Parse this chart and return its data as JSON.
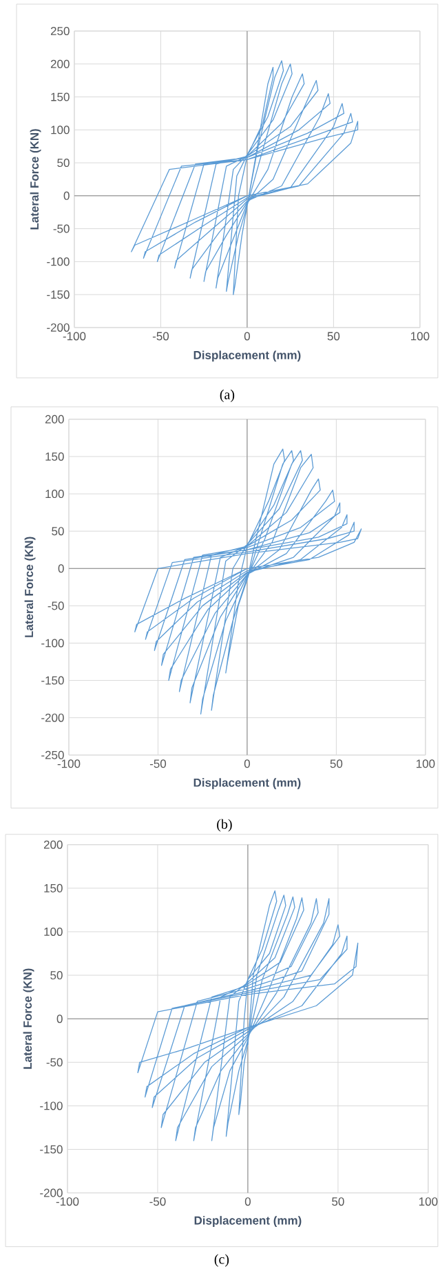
{
  "chart_data": [
    {
      "type": "line",
      "xlabel": "Displacement (mm)",
      "ylabel": "Lateral Force (KN)",
      "annotations": [
        "(a)"
      ],
      "color": "#5b9bd5",
      "grid": true,
      "marker": "none",
      "line_style": "solid",
      "xlim": [
        -100,
        100
      ],
      "xticks": [
        -100,
        -50,
        0,
        50,
        100
      ],
      "ylim": [
        -200,
        250
      ],
      "yticks": [
        -200,
        -150,
        -100,
        -50,
        0,
        50,
        100,
        150,
        200,
        250
      ],
      "x": [
        0,
        5,
        12,
        15,
        15,
        9,
        0,
        -5,
        -8,
        -7,
        -3,
        0,
        6,
        16,
        20,
        21,
        12,
        0,
        -6,
        -12,
        -11,
        -5,
        0,
        8,
        20,
        25,
        26,
        15,
        0,
        -8,
        -18,
        -17,
        -8,
        0,
        12,
        26,
        32,
        33,
        20,
        0,
        -12,
        -25,
        -24,
        -12,
        0,
        15,
        34,
        40,
        41,
        25,
        0,
        -18,
        -33,
        -32,
        -16,
        0,
        20,
        42,
        47,
        48,
        30,
        0,
        -25,
        -42,
        -41,
        -20,
        0,
        25,
        50,
        55,
        56,
        35,
        0,
        -30,
        -52,
        -51,
        -25,
        0,
        30,
        56,
        60,
        61,
        40,
        0,
        -38,
        -60,
        -59,
        -30,
        0,
        35,
        60,
        64,
        64,
        45,
        0,
        -45,
        -67,
        -65,
        -30,
        0
      ],
      "values": [
        -15,
        60,
        170,
        195,
        180,
        110,
        60,
        0,
        -150,
        -135,
        -60,
        -15,
        70,
        180,
        205,
        190,
        120,
        62,
        30,
        -145,
        -130,
        -60,
        -15,
        60,
        170,
        200,
        185,
        115,
        62,
        40,
        -140,
        -125,
        -65,
        -12,
        40,
        150,
        185,
        170,
        110,
        60,
        45,
        -130,
        -115,
        -60,
        -10,
        25,
        140,
        175,
        160,
        105,
        60,
        48,
        -125,
        -112,
        -55,
        -8,
        15,
        120,
        155,
        140,
        100,
        58,
        48,
        -110,
        -98,
        -50,
        -5,
        12,
        105,
        140,
        125,
        95,
        58,
        48,
        -100,
        -90,
        -45,
        -3,
        15,
        95,
        125,
        112,
        92,
        55,
        45,
        -95,
        -85,
        -40,
        0,
        18,
        80,
        113,
        100,
        88,
        55,
        40,
        -85,
        -75,
        -35,
        0
      ]
    },
    {
      "type": "line",
      "xlabel": "Displacement (mm)",
      "ylabel": "Lateral Force (KN)",
      "annotations": [
        "(b)"
      ],
      "color": "#5b9bd5",
      "grid": true,
      "marker": "none",
      "line_style": "solid",
      "xlim": [
        -100,
        100
      ],
      "xticks": [
        -100,
        -50,
        0,
        50,
        100
      ],
      "ylim": [
        -250,
        200
      ],
      "yticks": [
        -250,
        -200,
        -150,
        -100,
        -50,
        0,
        50,
        100,
        150,
        200
      ],
      "x": [
        0,
        5,
        15,
        20,
        21,
        12,
        0,
        -5,
        -12,
        -11,
        -5,
        0,
        7,
        20,
        25,
        26,
        15,
        0,
        -8,
        -20,
        -19,
        -8,
        0,
        10,
        25,
        30,
        31,
        18,
        0,
        -12,
        -26,
        -25,
        -12,
        0,
        14,
        30,
        36,
        37,
        22,
        0,
        -15,
        -32,
        -31,
        -15,
        0,
        18,
        36,
        40,
        41,
        25,
        0,
        -20,
        -38,
        -37,
        -18,
        0,
        22,
        44,
        48,
        49,
        30,
        0,
        -25,
        -44,
        -43,
        -22,
        0,
        26,
        49,
        52,
        52,
        35,
        0,
        -30,
        -48,
        -47,
        -25,
        0,
        30,
        53,
        56,
        56,
        40,
        0,
        -35,
        -52,
        -51,
        -28,
        0,
        35,
        57,
        60,
        60,
        45,
        0,
        -42,
        -57,
        -56,
        -30,
        0,
        40,
        60,
        64,
        62,
        52,
        0,
        -50,
        -63,
        -62,
        -35,
        0
      ],
      "values": [
        -15,
        40,
        140,
        160,
        145,
        90,
        30,
        -20,
        -140,
        -125,
        -50,
        -15,
        40,
        140,
        158,
        145,
        85,
        32,
        0,
        -190,
        -170,
        -70,
        -12,
        40,
        140,
        158,
        145,
        80,
        32,
        10,
        -195,
        -175,
        -70,
        -10,
        35,
        135,
        153,
        135,
        75,
        30,
        15,
        -180,
        -160,
        -65,
        -8,
        25,
        105,
        120,
        105,
        65,
        30,
        18,
        -165,
        -150,
        -60,
        -8,
        20,
        90,
        105,
        90,
        55,
        28,
        18,
        -150,
        -135,
        -55,
        -6,
        15,
        70,
        88,
        75,
        48,
        25,
        15,
        -130,
        -115,
        -50,
        -5,
        12,
        55,
        72,
        60,
        42,
        25,
        12,
        -110,
        -98,
        -45,
        -3,
        12,
        45,
        62,
        50,
        40,
        22,
        8,
        -95,
        -85,
        -40,
        0,
        15,
        35,
        53,
        40,
        35,
        20,
        0,
        -85,
        -75,
        -40,
        0
      ]
    },
    {
      "type": "line",
      "xlabel": "Displacement (mm)",
      "ylabel": "Lateral Force (KN)",
      "annotations": [
        "(c)"
      ],
      "color": "#5b9bd5",
      "grid": true,
      "marker": "none",
      "line_style": "solid",
      "xlim": [
        -100,
        100
      ],
      "xticks": [
        -100,
        -50,
        0,
        50,
        100
      ],
      "ylim": [
        -200,
        200
      ],
      "yticks": [
        -200,
        -150,
        -100,
        -50,
        0,
        50,
        100,
        150,
        200
      ],
      "x": [
        0,
        3,
        12,
        15,
        16,
        8,
        0,
        -2,
        -5,
        -4,
        -2,
        0,
        5,
        17,
        20,
        21,
        12,
        0,
        -5,
        -12,
        -11,
        -5,
        0,
        8,
        22,
        25,
        26,
        15,
        0,
        -10,
        -20,
        -19,
        -10,
        0,
        12,
        27,
        30,
        31,
        18,
        0,
        -15,
        -30,
        -29,
        -15,
        0,
        16,
        35,
        38,
        39,
        24,
        0,
        -20,
        -40,
        -39,
        -20,
        0,
        20,
        42,
        45,
        45,
        30,
        0,
        -28,
        -48,
        -47,
        -24,
        0,
        25,
        47,
        50,
        51,
        35,
        0,
        -35,
        -53,
        -52,
        -28,
        0,
        30,
        52,
        55,
        55,
        40,
        0,
        -42,
        -57,
        -56,
        -30,
        0,
        38,
        58,
        61,
        60,
        48,
        0,
        -50,
        -61,
        -60,
        -35,
        0
      ],
      "values": [
        -30,
        50,
        130,
        147,
        135,
        80,
        45,
        0,
        -110,
        -95,
        -50,
        -28,
        50,
        125,
        142,
        130,
        75,
        45,
        20,
        -135,
        -120,
        -60,
        -25,
        45,
        120,
        140,
        128,
        70,
        42,
        25,
        -140,
        -125,
        -60,
        -22,
        35,
        115,
        139,
        125,
        65,
        40,
        25,
        -140,
        -125,
        -60,
        -20,
        30,
        110,
        138,
        122,
        60,
        38,
        25,
        -140,
        -125,
        -55,
        -18,
        25,
        110,
        138,
        120,
        55,
        35,
        20,
        -125,
        -110,
        -50,
        -15,
        20,
        85,
        108,
        95,
        50,
        32,
        15,
        -102,
        -90,
        -45,
        -12,
        15,
        75,
        95,
        80,
        45,
        30,
        12,
        -90,
        -78,
        -40,
        -10,
        15,
        50,
        87,
        60,
        40,
        28,
        8,
        -62,
        -50,
        -35,
        -10
      ]
    }
  ]
}
